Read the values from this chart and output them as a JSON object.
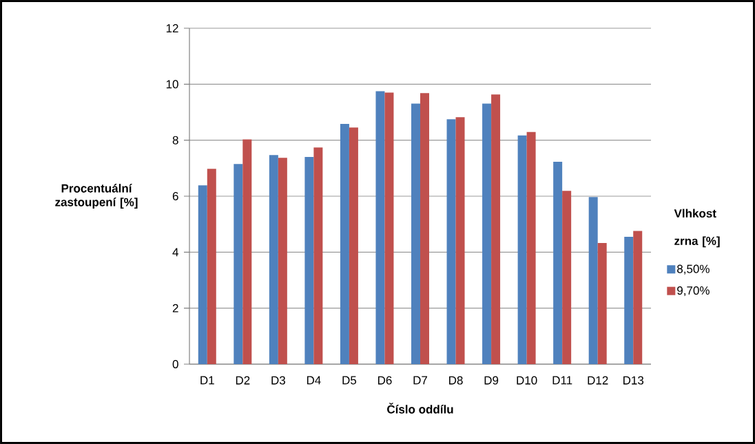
{
  "chart_data": {
    "type": "bar",
    "xlabel": "Číslo oddílu",
    "ylabel": "Procentuální zastoupení  [%]",
    "legend_title": "Vlhkost zrna [%]",
    "categories": [
      "D1",
      "D2",
      "D3",
      "D4",
      "D5",
      "D6",
      "D7",
      "D8",
      "D9",
      "D10",
      "D11",
      "D12",
      "D13"
    ],
    "series": [
      {
        "name": "8,50%",
        "color": "#4f81bd",
        "values": [
          6.39,
          7.15,
          7.47,
          7.4,
          8.58,
          9.75,
          9.31,
          8.75,
          9.31,
          8.17,
          7.23,
          5.97,
          4.55
        ]
      },
      {
        "name": "9,70%",
        "color": "#c0504d",
        "values": [
          6.98,
          8.03,
          7.37,
          7.74,
          8.45,
          9.7,
          9.68,
          8.82,
          9.63,
          8.29,
          6.19,
          4.33,
          4.76
        ]
      }
    ],
    "ylim": [
      0,
      12
    ],
    "yticks": [
      0,
      2,
      4,
      6,
      8,
      10,
      12
    ],
    "grid": "y",
    "legend": "right"
  }
}
